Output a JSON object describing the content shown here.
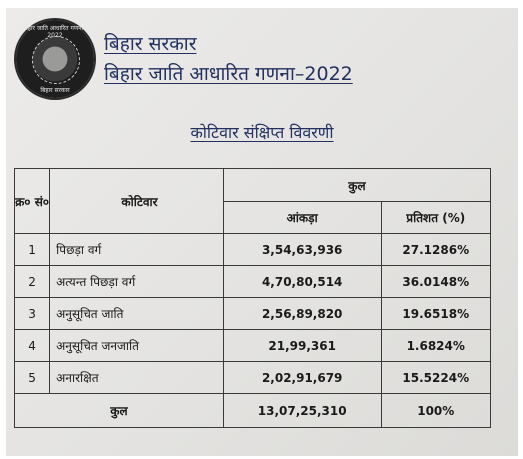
{
  "header": {
    "line1": "बिहार सरकार",
    "line2": "बिहार जाति आधारित गणना–2022"
  },
  "seal": {
    "top_text": "बिहार जाति आधारित गणना - 2022",
    "bottom_text": "बिहार सरकार"
  },
  "subtitle": "कोटिवार संक्षिप्त विवरणी",
  "table": {
    "col_no": "क्र० सं०",
    "col_category": "कोटिवार",
    "col_total": "कुल",
    "col_count": "आंकड़ा",
    "col_percent": "प्रतिशत (%)",
    "rows": [
      {
        "no": "1",
        "category": "पिछड़ा वर्ग",
        "count": "3,54,63,936",
        "percent": "27.1286%"
      },
      {
        "no": "2",
        "category": "अत्यन्त पिछड़ा वर्ग",
        "count": "4,70,80,514",
        "percent": "36.0148%"
      },
      {
        "no": "3",
        "category": "अनुसूचित जाति",
        "count": "2,56,89,820",
        "percent": "19.6518%"
      },
      {
        "no": "4",
        "category": "अनुसूचित जनजाति",
        "count": "21,99,361",
        "percent": "1.6824%"
      },
      {
        "no": "5",
        "category": "अनारक्षित",
        "count": "2,02,91,679",
        "percent": "15.5224%"
      }
    ],
    "total": {
      "label": "कुल",
      "count": "13,07,25,310",
      "percent": "100%"
    }
  }
}
